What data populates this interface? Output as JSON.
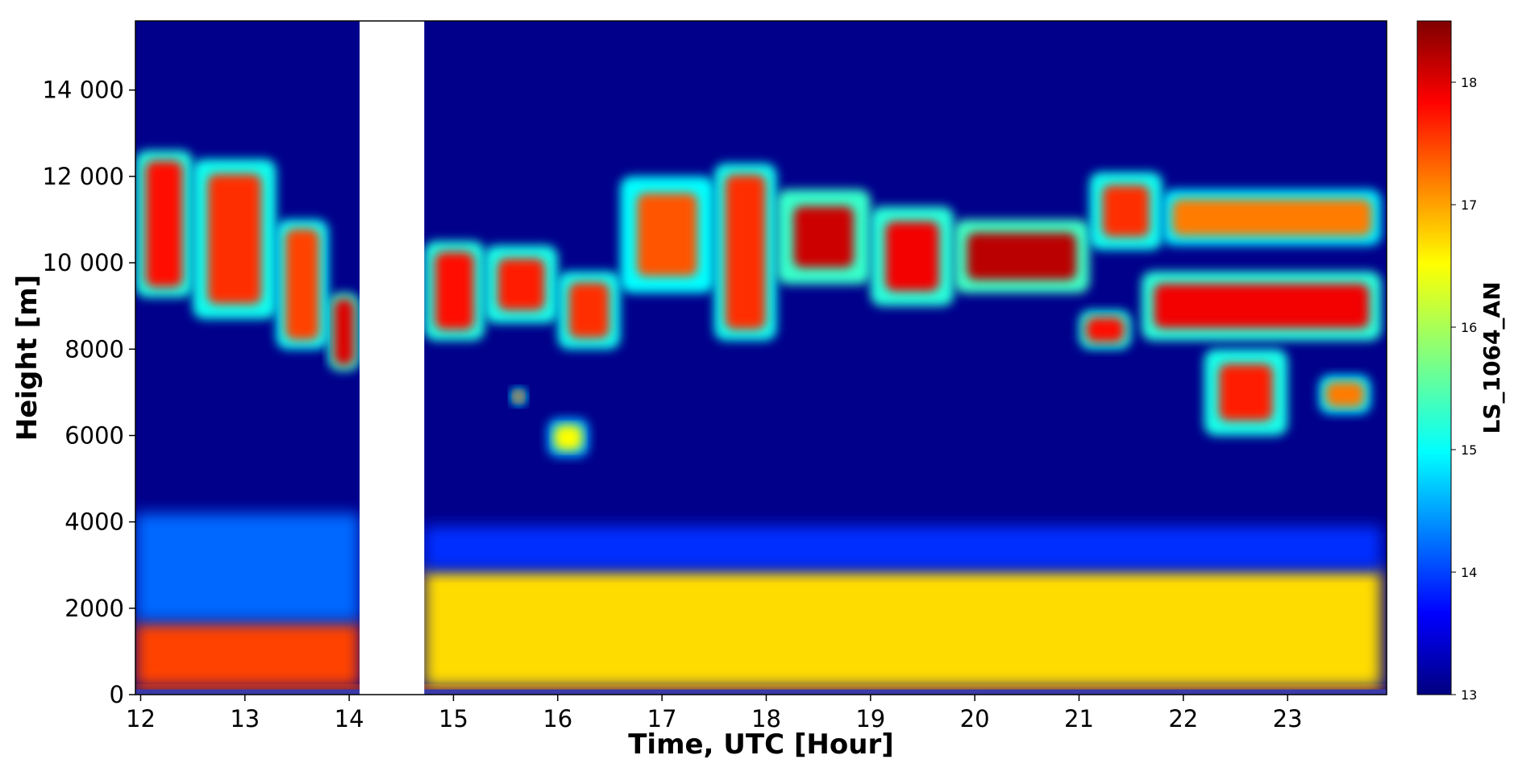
{
  "chart_data": {
    "type": "heatmap",
    "title": "",
    "xlabel": "Time, UTC [Hour]",
    "ylabel": "Height [m]",
    "xlim": [
      11.95,
      23.95
    ],
    "ylim": [
      0,
      15600
    ],
    "x_ticks": [
      12,
      13,
      14,
      15,
      16,
      17,
      18,
      19,
      20,
      21,
      22,
      23
    ],
    "x_tick_labels": [
      "12",
      "13",
      "14",
      "15",
      "16",
      "17",
      "18",
      "19",
      "20",
      "21",
      "22",
      "23"
    ],
    "y_ticks": [
      0,
      2000,
      4000,
      6000,
      8000,
      10000,
      12000,
      14000
    ],
    "y_tick_labels": [
      "0",
      "2000",
      "4000",
      "6000",
      "8000",
      "10 000",
      "12 000",
      "14 000"
    ],
    "colorbar": {
      "label": "LS_1064_AN",
      "range": [
        13,
        18.5
      ],
      "ticks": [
        13,
        14,
        15,
        16,
        17,
        18
      ],
      "tick_labels": [
        "13",
        "14",
        "15",
        "16",
        "17",
        "18"
      ],
      "colormap": "jet"
    },
    "data_gap": [
      14.1,
      14.72
    ],
    "grid": false,
    "layers": [
      {
        "name": "",
        "t_start": 11.95,
        "t_end": 23.9,
        "height_bottom": 0,
        "height_top": 180,
        "value": 17.4
      },
      {
        "name": "",
        "t_start": 11.95,
        "t_end": 14.1,
        "height_bottom": 180,
        "height_top": 1700,
        "value": 17.5
      },
      {
        "name": "",
        "t_start": 14.72,
        "t_end": 23.9,
        "height_bottom": 180,
        "height_top": 2900,
        "value": 16.7
      },
      {
        "name": "",
        "t_start": 11.95,
        "t_end": 14.1,
        "height_bottom": 1700,
        "height_top": 4200,
        "value": 14.2
      },
      {
        "name": "",
        "t_start": 14.72,
        "t_end": 23.9,
        "height_bottom": 2900,
        "height_top": 3900,
        "value": 13.9
      }
    ],
    "cloud_segments": [
      {
        "t_start": 11.95,
        "t_end": 12.5,
        "height_bottom": 9200,
        "height_top": 12600,
        "value": 17.8
      },
      {
        "t_start": 12.5,
        "t_end": 13.3,
        "height_bottom": 8700,
        "height_top": 12400,
        "value": 17.6
      },
      {
        "t_start": 13.3,
        "t_end": 13.8,
        "height_bottom": 8000,
        "height_top": 11000,
        "value": 17.5
      },
      {
        "t_start": 13.8,
        "t_end": 14.1,
        "height_bottom": 7500,
        "height_top": 9300,
        "value": 18.0
      },
      {
        "t_start": 14.72,
        "t_end": 15.3,
        "height_bottom": 8200,
        "height_top": 10500,
        "value": 17.8
      },
      {
        "t_start": 15.3,
        "t_end": 16.0,
        "height_bottom": 8600,
        "height_top": 10400,
        "value": 17.7
      },
      {
        "t_start": 16.0,
        "t_end": 16.6,
        "height_bottom": 8000,
        "height_top": 9800,
        "value": 17.6
      },
      {
        "t_start": 16.6,
        "t_end": 17.5,
        "height_bottom": 9300,
        "height_top": 12000,
        "value": 17.4
      },
      {
        "t_start": 17.5,
        "t_end": 18.1,
        "height_bottom": 8200,
        "height_top": 12300,
        "value": 17.6
      },
      {
        "t_start": 18.1,
        "t_end": 19.0,
        "height_bottom": 9500,
        "height_top": 11700,
        "value": 18.1
      },
      {
        "t_start": 19.0,
        "t_end": 19.8,
        "height_bottom": 9000,
        "height_top": 11300,
        "value": 17.9
      },
      {
        "t_start": 19.8,
        "t_end": 21.1,
        "height_bottom": 9300,
        "height_top": 11000,
        "value": 18.2
      },
      {
        "t_start": 21.1,
        "t_end": 21.8,
        "height_bottom": 10300,
        "height_top": 12100,
        "value": 17.6
      },
      {
        "t_start": 21.8,
        "t_end": 23.9,
        "height_bottom": 10400,
        "height_top": 11700,
        "value": 17.2
      },
      {
        "t_start": 21.0,
        "t_end": 21.5,
        "height_bottom": 8000,
        "height_top": 8900,
        "value": 17.8
      },
      {
        "t_start": 21.6,
        "t_end": 23.9,
        "height_bottom": 8200,
        "height_top": 9800,
        "value": 17.9
      },
      {
        "t_start": 22.2,
        "t_end": 23.0,
        "height_bottom": 6000,
        "height_top": 8000,
        "value": 17.7
      },
      {
        "t_start": 23.3,
        "t_end": 23.8,
        "height_bottom": 6500,
        "height_top": 7400,
        "value": 17.2
      },
      {
        "t_start": 15.55,
        "t_end": 15.7,
        "height_bottom": 6700,
        "height_top": 7100,
        "value": 17.5
      },
      {
        "t_start": 15.9,
        "t_end": 16.3,
        "height_bottom": 5500,
        "height_top": 6400,
        "value": 16.5
      }
    ]
  }
}
